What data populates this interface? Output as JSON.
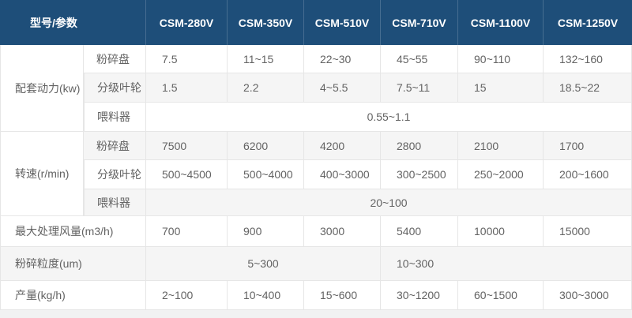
{
  "colors": {
    "header_bg": "#1e4e79",
    "header_text": "#ffffff",
    "stripe_bg": "#f5f5f5",
    "row_bg": "#ffffff",
    "border": "#e6e6e6",
    "body_text": "#636363",
    "page_bg": "#f1f2f2"
  },
  "header": {
    "param_label": "型号/参数",
    "models": [
      "CSM-280V",
      "CSM-350V",
      "CSM-510V",
      "CSM-710V",
      "CSM-1100V",
      "CSM-1250V"
    ]
  },
  "rows": [
    {
      "group": "配套动力(kw)",
      "sub": "粉碎盘",
      "values": [
        "7.5",
        "11~15",
        "22~30",
        "45~55",
        "90~110",
        "132~160"
      ]
    },
    {
      "sub": "分级叶轮",
      "values": [
        "1.5",
        "2.2",
        "4~5.5",
        "7.5~11",
        "15",
        "18.5~22"
      ]
    },
    {
      "sub": "喂料器",
      "merged_value": "0.55~1.1"
    },
    {
      "group": "转速(r/min)",
      "sub": "粉碎盘",
      "values": [
        "7500",
        "6200",
        "4200",
        "2800",
        "2100",
        "1700"
      ]
    },
    {
      "sub": "分级叶轮",
      "values": [
        "500~4500",
        "500~4000",
        "400~3000",
        "300~2500",
        "250~2000",
        "200~1600"
      ]
    },
    {
      "sub": "喂料器",
      "merged_value": "20~100"
    },
    {
      "label": "最大处理风量(m3/h)",
      "values": [
        "700",
        "900",
        "3000",
        "5400",
        "10000",
        "15000"
      ]
    },
    {
      "label": "粉碎粒度(um)",
      "value_left": "5~300",
      "value_right": "10~300"
    },
    {
      "label": "产量(kg/h)",
      "values": [
        "2~100",
        "10~400",
        "15~600",
        "30~1200",
        "60~1500",
        "300~3000"
      ]
    }
  ]
}
